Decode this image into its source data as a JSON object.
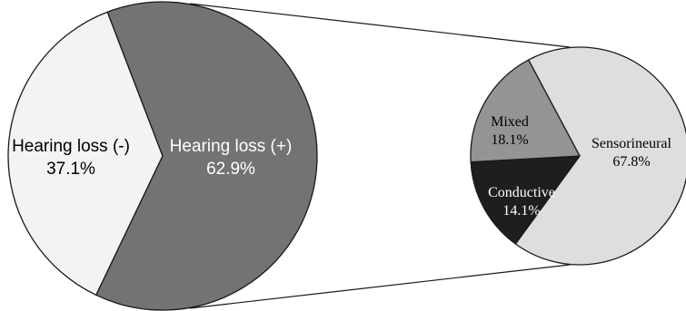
{
  "chart_data": [
    {
      "type": "pie",
      "name": "main",
      "slices": [
        {
          "label": "Hearing loss (-)",
          "value": 37.1,
          "value_label": "37.1%",
          "color": "#f3f3f3",
          "text_color": "#000000"
        },
        {
          "label": "Hearing loss (+)",
          "value": 62.9,
          "value_label": "62.9%",
          "color": "#737373",
          "text_color": "#ffffff"
        }
      ],
      "title": "",
      "legend": "none"
    },
    {
      "type": "pie",
      "name": "breakdown",
      "expands": "Hearing loss (+)",
      "slices": [
        {
          "label": "Sensorineural",
          "value": 67.8,
          "value_label": "67.8%",
          "color": "#dedede",
          "text_color": "#000000"
        },
        {
          "label": "Conductive",
          "value": 14.1,
          "value_label": "14.1%",
          "color": "#1e1e1e",
          "text_color": "#ffffff"
        },
        {
          "label": "Mixed",
          "value": 18.1,
          "value_label": "18.1%",
          "color": "#949494",
          "text_color": "#000000"
        }
      ],
      "title": "",
      "legend": "none"
    }
  ]
}
